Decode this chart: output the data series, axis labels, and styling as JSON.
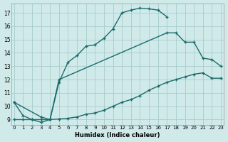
{
  "xlabel": "Humidex (Indice chaleur)",
  "bg_color": "#d0eaea",
  "grid_color": "#a8cccc",
  "line_color": "#1a6b6b",
  "line1_x": [
    0,
    1,
    2,
    3,
    4,
    5,
    6,
    7,
    8,
    9,
    10,
    11,
    12,
    13,
    14,
    15,
    16,
    17
  ],
  "line1_y": [
    10.3,
    9.3,
    9.0,
    8.8,
    9.0,
    11.8,
    13.3,
    13.8,
    14.5,
    14.6,
    15.1,
    15.8,
    17.0,
    17.2,
    17.35,
    17.3,
    17.2,
    16.7
  ],
  "line2_x": [
    0,
    1,
    2,
    3,
    4,
    5,
    6,
    7,
    8,
    9,
    10,
    11,
    12,
    13,
    14,
    15,
    16,
    17,
    18,
    19,
    20,
    21,
    22,
    23
  ],
  "line2_y": [
    9.0,
    9.0,
    9.0,
    9.0,
    9.0,
    9.05,
    9.1,
    9.2,
    9.4,
    9.5,
    9.7,
    10.0,
    10.3,
    10.5,
    10.8,
    11.2,
    11.5,
    11.8,
    12.0,
    12.2,
    12.4,
    12.5,
    12.1,
    12.1
  ],
  "line3_x": [
    0,
    3,
    4,
    5,
    17,
    18,
    19,
    20,
    21,
    22,
    23
  ],
  "line3_y": [
    10.3,
    9.2,
    9.0,
    12.0,
    15.5,
    15.5,
    14.8,
    14.8,
    13.6,
    13.5,
    13.0
  ],
  "xlim": [
    -0.3,
    23.3
  ],
  "ylim": [
    8.6,
    17.7
  ],
  "xticks": [
    0,
    1,
    2,
    3,
    4,
    5,
    6,
    7,
    8,
    9,
    10,
    11,
    12,
    13,
    14,
    15,
    16,
    17,
    18,
    19,
    20,
    21,
    22,
    23
  ],
  "yticks": [
    9,
    10,
    11,
    12,
    13,
    14,
    15,
    16,
    17
  ]
}
